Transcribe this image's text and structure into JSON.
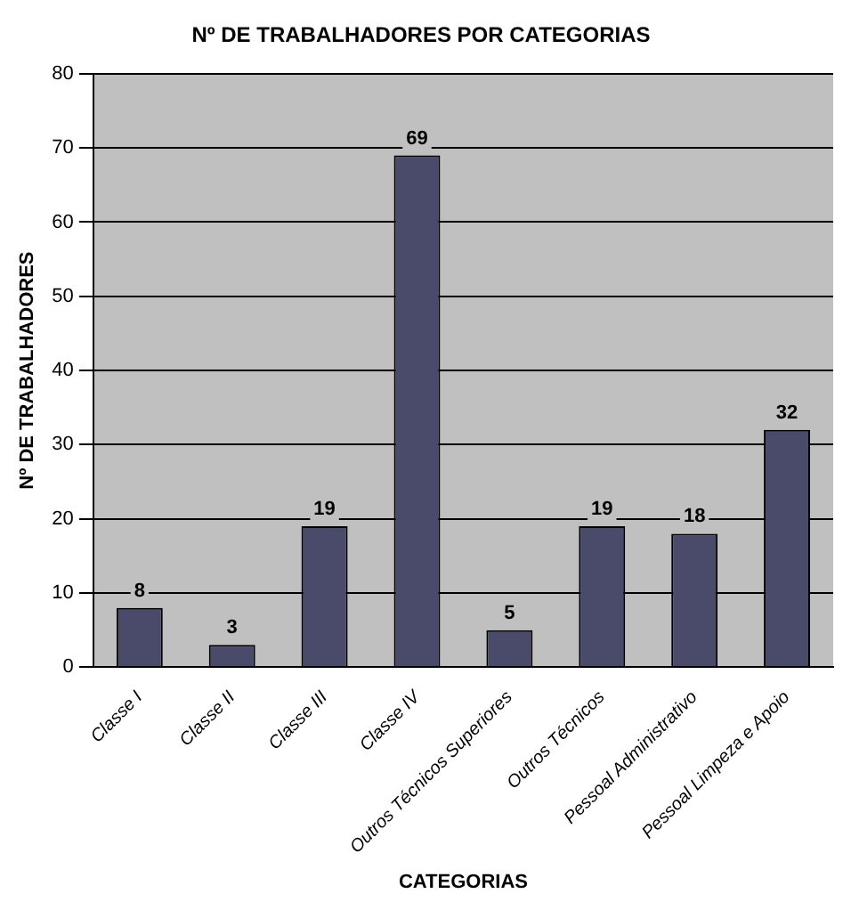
{
  "chart_data": {
    "type": "bar",
    "title": "Nº DE TRABALHADORES POR CATEGORIAS",
    "xlabel": "CATEGORIAS",
    "ylabel": "Nº DE TRABALHADORES",
    "categories": [
      "Classe I",
      "Classe II",
      "Classe III",
      "Classe IV",
      "Outros Técnicos Superiores",
      "Outros Técnicos",
      "Pessoal Administrativo",
      "Pessoal Limpeza e Apoio"
    ],
    "values": [
      8,
      3,
      19,
      69,
      5,
      19,
      18,
      32
    ],
    "color": "#4a4a6a",
    "ylim": [
      0,
      80
    ],
    "yticks": [
      0,
      10,
      20,
      30,
      40,
      50,
      60,
      70,
      80
    ],
    "grid": "y",
    "legend": false,
    "data_labels": true
  }
}
